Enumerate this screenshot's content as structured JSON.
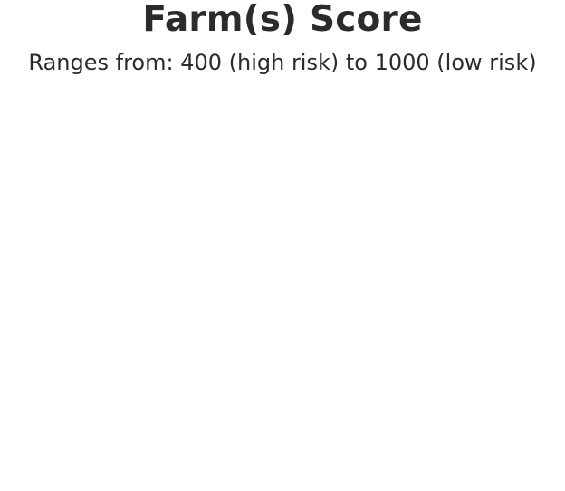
{
  "header": {
    "title": "Farm(s) Score",
    "range_caption": "Ranges from: 400 (high risk) to 1000 (low risk)"
  },
  "colors": {
    "text": "#2b2b2b",
    "background": "#ffffff"
  }
}
